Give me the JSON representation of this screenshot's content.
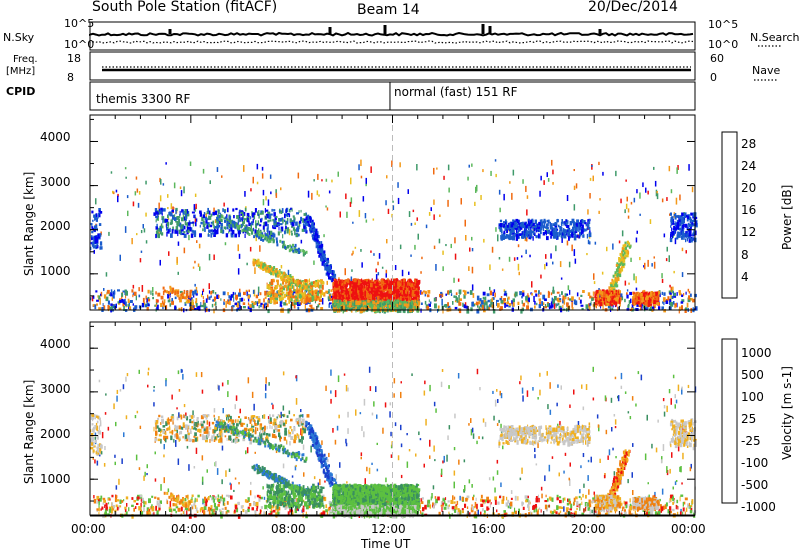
{
  "header": {
    "title": "South Pole Station (fitACF)",
    "beam": "Beam 14",
    "date": "20/Dec/2014"
  },
  "strip": {
    "nsky_label": "N.Sky",
    "nsky_ticks": [
      "10^5",
      "10^0"
    ],
    "nsearch_label": "N.Search",
    "nsearch_ticks": [
      "10^5",
      "10^0"
    ],
    "freq_label": "Freq.",
    "freq_unit": "[MHz]",
    "freq_ticks": [
      "18",
      "8"
    ],
    "nave_label": "Nave",
    "nave_ticks": [
      "60",
      "0"
    ],
    "cpid_label": "CPID",
    "cpid_segments": [
      "themis 3300 RF",
      "normal (fast) 151 RF"
    ]
  },
  "colors": {
    "power_scale": [
      "#0000ee",
      "#1a5ccc",
      "#3f9a6a",
      "#5cb85c",
      "#e8c020",
      "#f39a1a",
      "#f06a10",
      "#ee1111"
    ],
    "velocity_scale": [
      "#1a3fcc",
      "#2c7ad6",
      "#3a8f60",
      "#5cc040",
      "#c8c8c8",
      "#f0b020",
      "#f08010",
      "#ee1111"
    ]
  },
  "chart_data": [
    {
      "type": "heatmap",
      "title": "Power",
      "ylabel": "Slant Range [km]",
      "xlabel": "Time UT",
      "colorbar_label": "Power [dB]",
      "colorbar_ticks": [
        "28",
        "24",
        "20",
        "16",
        "12",
        "8",
        "4"
      ],
      "yticks": [
        "1000",
        "2000",
        "3000",
        "4000"
      ],
      "ylim": [
        180,
        4600
      ],
      "xticks": [
        "00:00",
        "04:00",
        "08:00",
        "12:00",
        "16:00",
        "20:00",
        "00:00"
      ],
      "xlim": [
        0,
        24
      ]
    },
    {
      "type": "heatmap",
      "title": "Velocity",
      "ylabel": "Slant Range [km]",
      "xlabel": "Time UT",
      "colorbar_label": "Velocity [m s-1]",
      "colorbar_ticks": [
        "1000",
        "500",
        "100",
        "25",
        "-25",
        "-100",
        "-500",
        "-1000"
      ],
      "yticks": [
        "1000",
        "2000",
        "3000",
        "4000"
      ],
      "ylim": [
        180,
        4600
      ],
      "xticks": [
        "00:00",
        "04:00",
        "08:00",
        "12:00",
        "16:00",
        "20:00",
        "00:00"
      ],
      "xlim": [
        0,
        24
      ]
    }
  ]
}
